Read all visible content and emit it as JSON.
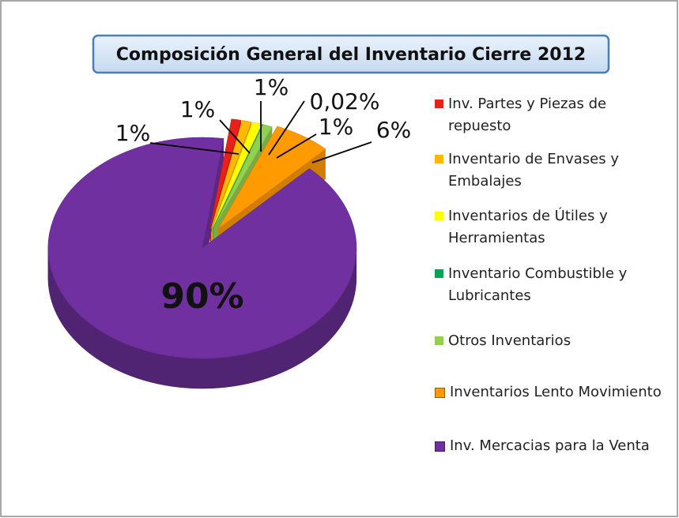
{
  "chart_data": {
    "type": "pie3d",
    "title": "Composición General del Inventario Cierre 2012",
    "categories": [
      "Inv. Partes y Piezas de repuesto",
      "Inventario de Envases y Embalajes",
      "Inventarios de Útiles y Herramientas",
      "Inventario Combustible y Lubricantes",
      "Otros Inventarios",
      "Inventarios Lento Movimiento",
      "Inv. Mercacias para la Venta"
    ],
    "values": [
      1,
      1,
      1,
      0.02,
      1,
      6,
      90
    ],
    "value_labels": [
      "1%",
      "1%",
      "1%",
      "0,02%",
      "1%",
      "6%",
      "90%"
    ],
    "colors": [
      "#e8201a",
      "#ffb800",
      "#ffff00",
      "#00a650",
      "#92d050",
      "#ff9a00",
      "#7030a0"
    ],
    "legend": "right"
  }
}
